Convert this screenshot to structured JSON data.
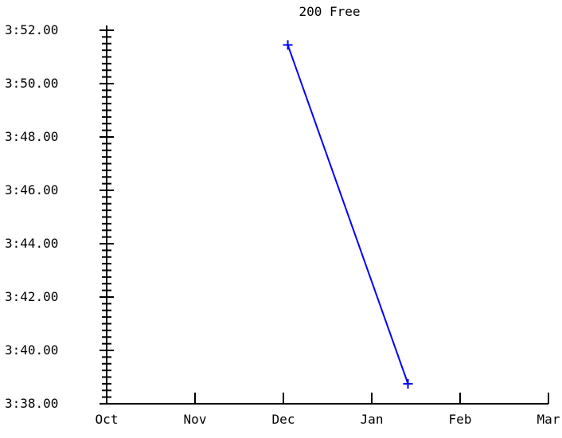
{
  "chart_data": {
    "type": "line",
    "title": "200 Free",
    "xlabel": "",
    "ylabel": "",
    "x_tick_labels": [
      "Oct",
      "Nov",
      "Dec",
      "Jan",
      "Feb",
      "Mar"
    ],
    "y_tick_labels": [
      "3:38.00",
      "3:40.00",
      "3:42.00",
      "3:44.00",
      "3:46.00",
      "3:48.00",
      "3:50.00",
      "3:52.00"
    ],
    "ylim_seconds": [
      218,
      232
    ],
    "y_minor_step_seconds": 0.25,
    "series": [
      {
        "color": "#0000ff",
        "marker": "plus",
        "points": [
          {
            "month_position": 2.05,
            "time_seconds": 231.45
          },
          {
            "month_position": 3.41,
            "time_seconds": 218.75
          }
        ]
      }
    ],
    "grid": false
  }
}
